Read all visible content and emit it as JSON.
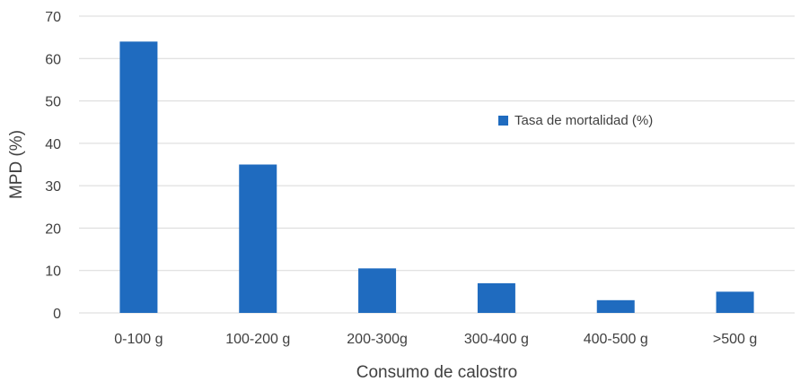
{
  "chart_data": {
    "type": "bar",
    "title": "",
    "xlabel": "Consumo de calostro",
    "ylabel": "MPD (%)",
    "categories": [
      "0-100 g",
      "100-200 g",
      "200-300g",
      "300-400 g",
      "400-500 g",
      ">500 g"
    ],
    "series": [
      {
        "name": "Tasa de mortalidad (%)",
        "values": [
          64,
          35,
          10.5,
          7,
          3,
          5
        ],
        "color": "#1f6bbf"
      }
    ],
    "ylim": [
      0,
      70
    ],
    "yticks": [
      0,
      10,
      20,
      30,
      40,
      50,
      60,
      70
    ],
    "grid": true,
    "grid_color": "#d9d9d9",
    "legend_position": "right-center inside plot"
  }
}
